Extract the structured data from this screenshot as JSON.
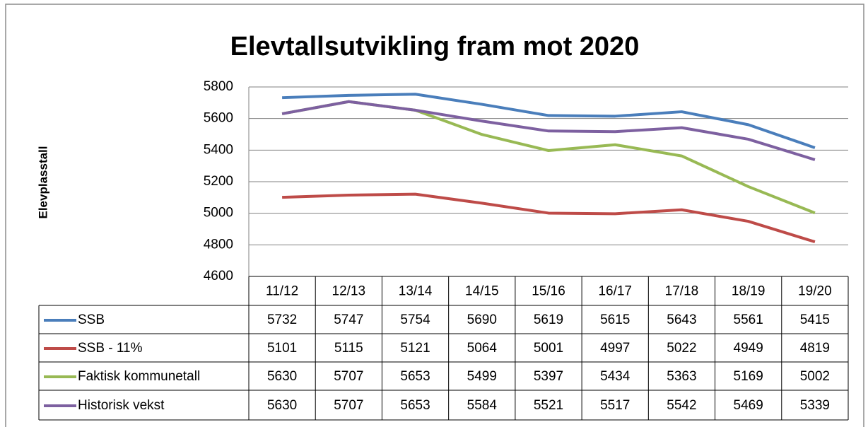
{
  "chart_data": {
    "type": "line",
    "title": "Elevtallsutvikling fram mot 2020",
    "y_label": "Elevplasstall",
    "categories": [
      "11/12",
      "12/13",
      "13/14",
      "14/15",
      "15/16",
      "16/17",
      "17/18",
      "18/19",
      "19/20"
    ],
    "series": [
      {
        "name": "SSB",
        "color": "#4a7ebb",
        "values": [
          5732,
          5747,
          5754,
          5690,
          5619,
          5615,
          5643,
          5561,
          5415
        ]
      },
      {
        "name": "SSB - 11%",
        "color": "#be4b48",
        "values": [
          5101,
          5115,
          5121,
          5064,
          5001,
          4997,
          5022,
          4949,
          4819
        ]
      },
      {
        "name": "Faktisk kommunetall",
        "color": "#98b954",
        "values": [
          5630,
          5707,
          5653,
          5499,
          5397,
          5434,
          5363,
          5169,
          5002
        ]
      },
      {
        "name": "Historisk vekst",
        "color": "#7d60a0",
        "values": [
          5630,
          5707,
          5653,
          5584,
          5521,
          5517,
          5542,
          5469,
          5339
        ]
      }
    ],
    "ylim": [
      4600,
      5800
    ],
    "yticks": [
      4600,
      4800,
      5000,
      5200,
      5400,
      5600,
      5800
    ],
    "grid": true
  }
}
